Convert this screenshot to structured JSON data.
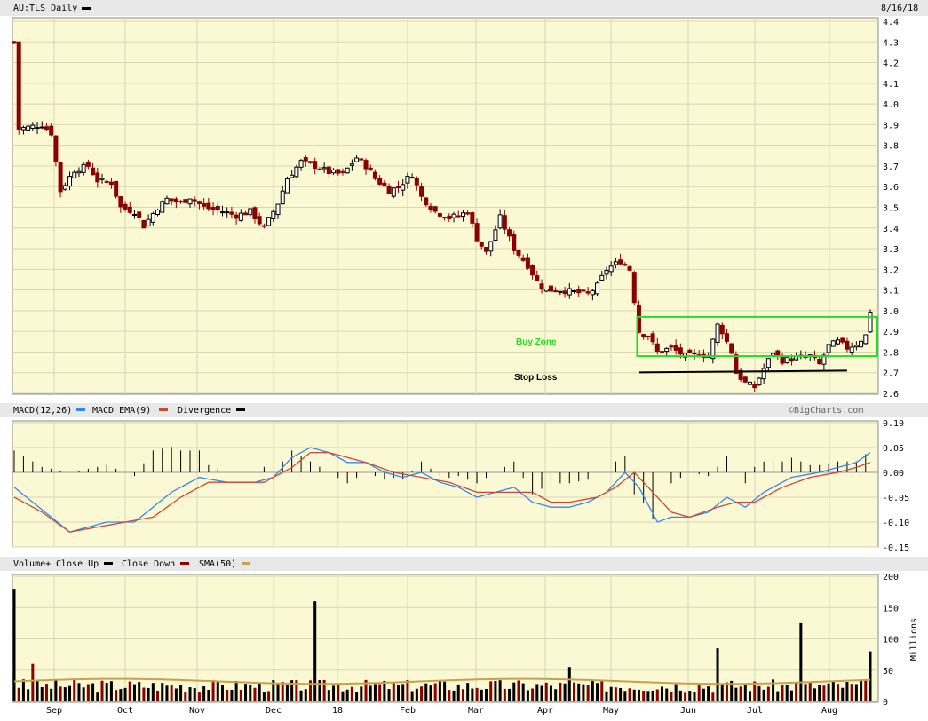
{
  "header": {
    "symbol_label": "AU:TLS Daily",
    "date_label": "8/16/18"
  },
  "annotations": {
    "buy_zone": "Buy Zone",
    "stop_loss": "Stop Loss",
    "buy_zone_color": "#22dd22",
    "stop_loss_color": "#000000"
  },
  "macd_legend": {
    "macd": "MACD(12,26)",
    "ema": "MACD EMA(9)",
    "divergence": "Divergence",
    "copyright": "©BigCharts.com"
  },
  "volume_legend": {
    "volume": "Volume+",
    "close_up": "Close Up",
    "close_down": "Close Down",
    "sma": "SMA(50)",
    "units": "Millions"
  },
  "colors": {
    "panel_bg": "#fbf8d4",
    "grid": "#d9d6b4",
    "up": "#000000",
    "down": "#8b0000",
    "macd": "#3388ee",
    "ema": "#c84a38",
    "sma": "#c8a050"
  },
  "chart_data": [
    {
      "type": "candlestick",
      "title": "AU:TLS Daily",
      "date": "8/16/18",
      "x_labels": [
        "Sep",
        "Oct",
        "Nov",
        "Dec",
        "18",
        "Feb",
        "Mar",
        "Apr",
        "May",
        "Jun",
        "Jul",
        "Aug"
      ],
      "y_ticks": [
        "4.4",
        "4.3",
        "4.2",
        "4.1",
        "4.0",
        "3.9",
        "3.8",
        "3.7",
        "3.6",
        "3.5",
        "3.4",
        "3.3",
        "3.2",
        "3.1",
        "3.0",
        "2.9",
        "2.8",
        "2.7",
        "2.6"
      ],
      "ylim": [
        2.6,
        4.4
      ],
      "grid": true,
      "close_path": [
        [
          0,
          4.3
        ],
        [
          1,
          3.88
        ],
        [
          6,
          3.9
        ],
        [
          8,
          3.86
        ],
        [
          10,
          3.58
        ],
        [
          13,
          3.68
        ],
        [
          16,
          3.7
        ],
        [
          18,
          3.63
        ],
        [
          21,
          3.62
        ],
        [
          23,
          3.5
        ],
        [
          26,
          3.48
        ],
        [
          28,
          3.41
        ],
        [
          31,
          3.5
        ],
        [
          33,
          3.54
        ],
        [
          36,
          3.52
        ],
        [
          38,
          3.55
        ],
        [
          41,
          3.5
        ],
        [
          45,
          3.48
        ],
        [
          48,
          3.46
        ],
        [
          51,
          3.48
        ],
        [
          54,
          3.4
        ],
        [
          57,
          3.52
        ],
        [
          59,
          3.64
        ],
        [
          62,
          3.72
        ],
        [
          65,
          3.7
        ],
        [
          68,
          3.67
        ],
        [
          71,
          3.66
        ],
        [
          74,
          3.74
        ],
        [
          76,
          3.7
        ],
        [
          78,
          3.64
        ],
        [
          81,
          3.58
        ],
        [
          83,
          3.6
        ],
        [
          86,
          3.66
        ],
        [
          88,
          3.55
        ],
        [
          91,
          3.48
        ],
        [
          94,
          3.45
        ],
        [
          96,
          3.46
        ],
        [
          98,
          3.48
        ],
        [
          100,
          3.35
        ],
        [
          102,
          3.28
        ],
        [
          105,
          3.45
        ],
        [
          108,
          3.3
        ],
        [
          111,
          3.22
        ],
        [
          113,
          3.14
        ],
        [
          115,
          3.1
        ],
        [
          118,
          3.1
        ],
        [
          121,
          3.09
        ],
        [
          124,
          3.08
        ],
        [
          126,
          3.12
        ],
        [
          128,
          3.2
        ],
        [
          131,
          3.24
        ],
        [
          133,
          3.2
        ],
        [
          134,
          3.05
        ],
        [
          135,
          2.9
        ],
        [
          137,
          2.88
        ],
        [
          139,
          2.8
        ],
        [
          142,
          2.82
        ],
        [
          145,
          2.78
        ],
        [
          148,
          2.79
        ],
        [
          150,
          2.78
        ],
        [
          152,
          2.93
        ],
        [
          153,
          2.9
        ],
        [
          155,
          2.8
        ],
        [
          156,
          2.7
        ],
        [
          158,
          2.65
        ],
        [
          160,
          2.63
        ],
        [
          162,
          2.72
        ],
        [
          164,
          2.8
        ],
        [
          166,
          2.76
        ],
        [
          169,
          2.77
        ],
        [
          172,
          2.78
        ],
        [
          174,
          2.74
        ],
        [
          176,
          2.83
        ],
        [
          178,
          2.85
        ],
        [
          180,
          2.82
        ],
        [
          182,
          2.84
        ],
        [
          184,
          2.88
        ],
        [
          185,
          3.0
        ]
      ],
      "annotations": {
        "buy_zone": {
          "label": "Buy Zone",
          "range": [
            2.78,
            2.97
          ],
          "from_index": 135,
          "to_index": 185
        },
        "stop_loss": {
          "label": "Stop Loss",
          "level": 2.71,
          "from_index": 134,
          "to_index": 180
        }
      }
    },
    {
      "type": "line",
      "title": "MACD(12,26)",
      "y_ticks": [
        "0.10",
        "0.05",
        "0.00",
        "-0.05",
        "-0.10",
        "-0.15"
      ],
      "ylim": [
        -0.15,
        0.1
      ],
      "series": [
        {
          "name": "MACD(12,26)",
          "points": [
            [
              0,
              -0.03
            ],
            [
              4,
              -0.06
            ],
            [
              8,
              -0.09
            ],
            [
              12,
              -0.12
            ],
            [
              16,
              -0.11
            ],
            [
              20,
              -0.1
            ],
            [
              26,
              -0.1
            ],
            [
              30,
              -0.07
            ],
            [
              34,
              -0.04
            ],
            [
              40,
              -0.01
            ],
            [
              46,
              -0.02
            ],
            [
              52,
              -0.02
            ],
            [
              56,
              -0.01
            ],
            [
              60,
              0.03
            ],
            [
              64,
              0.05
            ],
            [
              68,
              0.04
            ],
            [
              72,
              0.02
            ],
            [
              76,
              0.02
            ],
            [
              80,
              0.0
            ],
            [
              84,
              -0.01
            ],
            [
              88,
              0.0
            ],
            [
              92,
              -0.02
            ],
            [
              96,
              -0.03
            ],
            [
              100,
              -0.05
            ],
            [
              104,
              -0.04
            ],
            [
              108,
              -0.03
            ],
            [
              112,
              -0.06
            ],
            [
              116,
              -0.07
            ],
            [
              120,
              -0.07
            ],
            [
              124,
              -0.06
            ],
            [
              128,
              -0.04
            ],
            [
              132,
              0.0
            ],
            [
              135,
              -0.03
            ],
            [
              139,
              -0.1
            ],
            [
              142,
              -0.09
            ],
            [
              146,
              -0.09
            ],
            [
              150,
              -0.08
            ],
            [
              154,
              -0.05
            ],
            [
              158,
              -0.07
            ],
            [
              162,
              -0.04
            ],
            [
              168,
              -0.01
            ],
            [
              174,
              0.0
            ],
            [
              178,
              0.01
            ],
            [
              182,
              0.02
            ],
            [
              185,
              0.04
            ]
          ]
        },
        {
          "name": "MACD EMA(9)",
          "points": [
            [
              0,
              -0.05
            ],
            [
              6,
              -0.08
            ],
            [
              12,
              -0.12
            ],
            [
              18,
              -0.11
            ],
            [
              24,
              -0.1
            ],
            [
              30,
              -0.09
            ],
            [
              36,
              -0.05
            ],
            [
              42,
              -0.02
            ],
            [
              48,
              -0.02
            ],
            [
              54,
              -0.02
            ],
            [
              60,
              0.01
            ],
            [
              64,
              0.04
            ],
            [
              68,
              0.04
            ],
            [
              72,
              0.03
            ],
            [
              76,
              0.02
            ],
            [
              82,
              0.0
            ],
            [
              88,
              -0.01
            ],
            [
              94,
              -0.02
            ],
            [
              100,
              -0.04
            ],
            [
              106,
              -0.04
            ],
            [
              112,
              -0.04
            ],
            [
              116,
              -0.06
            ],
            [
              120,
              -0.06
            ],
            [
              126,
              -0.05
            ],
            [
              130,
              -0.03
            ],
            [
              134,
              0.0
            ],
            [
              138,
              -0.04
            ],
            [
              142,
              -0.08
            ],
            [
              146,
              -0.09
            ],
            [
              152,
              -0.07
            ],
            [
              156,
              -0.06
            ],
            [
              160,
              -0.06
            ],
            [
              166,
              -0.03
            ],
            [
              172,
              -0.01
            ],
            [
              178,
              0.0
            ],
            [
              182,
              0.01
            ],
            [
              185,
              0.02
            ]
          ]
        }
      ]
    },
    {
      "type": "bar",
      "title": "Volume+",
      "y_ticks": [
        "200",
        "150",
        "100",
        "50",
        "0"
      ],
      "ylim": [
        0,
        200
      ],
      "units": "Millions",
      "sma_level": 32,
      "spikes": [
        [
          0,
          180
        ],
        [
          2,
          35
        ],
        [
          4,
          60
        ],
        [
          65,
          160
        ],
        [
          120,
          55
        ],
        [
          152,
          85
        ],
        [
          170,
          125
        ],
        [
          185,
          80
        ]
      ],
      "base_range": [
        15,
        35
      ]
    }
  ]
}
